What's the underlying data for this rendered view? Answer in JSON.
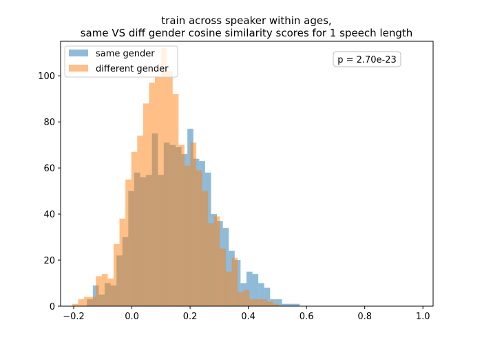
{
  "chart_data": {
    "type": "histogram",
    "title_line1": "train across speaker within ages,",
    "title_line2": "same VS diff gender cosine similarity scores for 1 speech length",
    "xlim": [
      -0.245,
      1.035
    ],
    "ylim": [
      0,
      115
    ],
    "x_ticks": [
      -0.2,
      0.0,
      0.2,
      0.4,
      0.6,
      0.8,
      1.0
    ],
    "x_tick_labels": [
      "−0.2",
      "0.0",
      "0.2",
      "0.4",
      "0.6",
      "0.8",
      "1.0"
    ],
    "y_ticks": [
      0,
      20,
      40,
      60,
      80,
      100
    ],
    "y_tick_labels": [
      "0",
      "20",
      "40",
      "60",
      "80",
      "100"
    ],
    "annotation": "p = 2.70e-23",
    "legend_position": "upper-left",
    "series": [
      {
        "name": "same gender",
        "color": "#1f77b4",
        "opacity": 0.5,
        "bin_start": -0.195,
        "bin_width": 0.0203,
        "counts": [
          0,
          0,
          3,
          9,
          5,
          10,
          9,
          22,
          30,
          50,
          58,
          56,
          57,
          75,
          57,
          71,
          70,
          69,
          66,
          77,
          64,
          63,
          58,
          40,
          37,
          34,
          24,
          20,
          10,
          15,
          14,
          10,
          8,
          3,
          3,
          1,
          1,
          1
        ]
      },
      {
        "name": "different gender",
        "color": "#ff7f0e",
        "opacity": 0.5,
        "bin_start": -0.205,
        "bin_width": 0.0203,
        "counts": [
          1,
          3,
          4,
          4,
          13,
          14,
          12,
          27,
          38,
          55,
          67,
          74,
          88,
          97,
          100,
          112,
          102,
          92,
          70,
          61,
          71,
          59,
          50,
          36,
          39,
          25,
          15,
          21,
          6,
          7,
          3,
          3,
          3,
          2,
          1
        ]
      }
    ]
  }
}
